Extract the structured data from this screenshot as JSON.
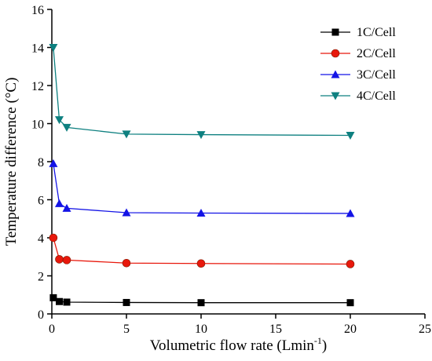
{
  "chart_data": {
    "type": "line",
    "xlabel": "Volumetric flow rate (Lmin",
    "xlabel_sup": "-1",
    "xlabel_end": ")",
    "ylabel": "Temperature difference (°C)",
    "xlim": [
      0,
      25
    ],
    "ylim": [
      0,
      16
    ],
    "xticks": [
      0,
      5,
      10,
      15,
      20,
      25
    ],
    "yticks": [
      0,
      2,
      4,
      6,
      8,
      10,
      12,
      14,
      16
    ],
    "grid": false,
    "legend_position": "top-right",
    "series": [
      {
        "name": "1C/Cell",
        "color": "#000000",
        "marker": "square",
        "x": [
          0.1,
          0.5,
          1,
          5,
          10,
          20
        ],
        "y": [
          0.85,
          0.65,
          0.62,
          0.6,
          0.59,
          0.59
        ]
      },
      {
        "name": "2C/Cell",
        "color": "#e8180c",
        "marker": "circle",
        "x": [
          0.1,
          0.5,
          1,
          5,
          10,
          20
        ],
        "y": [
          4.0,
          2.87,
          2.83,
          2.67,
          2.65,
          2.62
        ]
      },
      {
        "name": "3C/Cell",
        "color": "#1414e6",
        "marker": "triangle-up",
        "x": [
          0.1,
          0.5,
          1,
          5,
          10,
          20
        ],
        "y": [
          7.9,
          5.8,
          5.55,
          5.32,
          5.3,
          5.28
        ]
      },
      {
        "name": "4C/Cell",
        "color": "#0e8080",
        "marker": "triangle-down",
        "x": [
          0.1,
          0.5,
          1,
          5,
          10,
          20
        ],
        "y": [
          14.0,
          10.2,
          9.8,
          9.45,
          9.42,
          9.38
        ]
      }
    ]
  }
}
